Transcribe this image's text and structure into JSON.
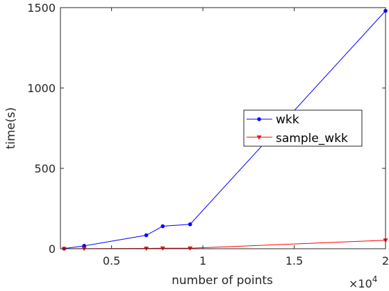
{
  "chart_data": {
    "type": "line",
    "xlabel": "number of points",
    "ylabel": "time(s)",
    "x_multiplier_base": "×10",
    "x_multiplier_exponent": "4",
    "xlim": [
      2200,
      20000
    ],
    "ylim": [
      0,
      1500
    ],
    "x_ticks": [
      5000,
      10000,
      15000,
      20000
    ],
    "x_tick_labels": [
      "0.5",
      "1",
      "1.5",
      "2"
    ],
    "y_ticks": [
      0,
      500,
      1000,
      1500
    ],
    "y_tick_labels": [
      "0",
      "500",
      "1000",
      "1500"
    ],
    "grid": false,
    "legend_position": "center-right",
    "series": [
      {
        "name": "wkk",
        "color": "#0000ff",
        "marker": "circle",
        "x": [
          2400,
          3500,
          6900,
          7800,
          9300,
          20000
        ],
        "y": [
          1,
          18,
          84,
          140,
          152,
          1480
        ]
      },
      {
        "name": "sample_wkk",
        "color": "#ff0000",
        "marker": "triangle-down",
        "x": [
          2400,
          3500,
          6900,
          7800,
          9300,
          20000
        ],
        "y": [
          0,
          1,
          2,
          3,
          3,
          53
        ]
      }
    ]
  }
}
